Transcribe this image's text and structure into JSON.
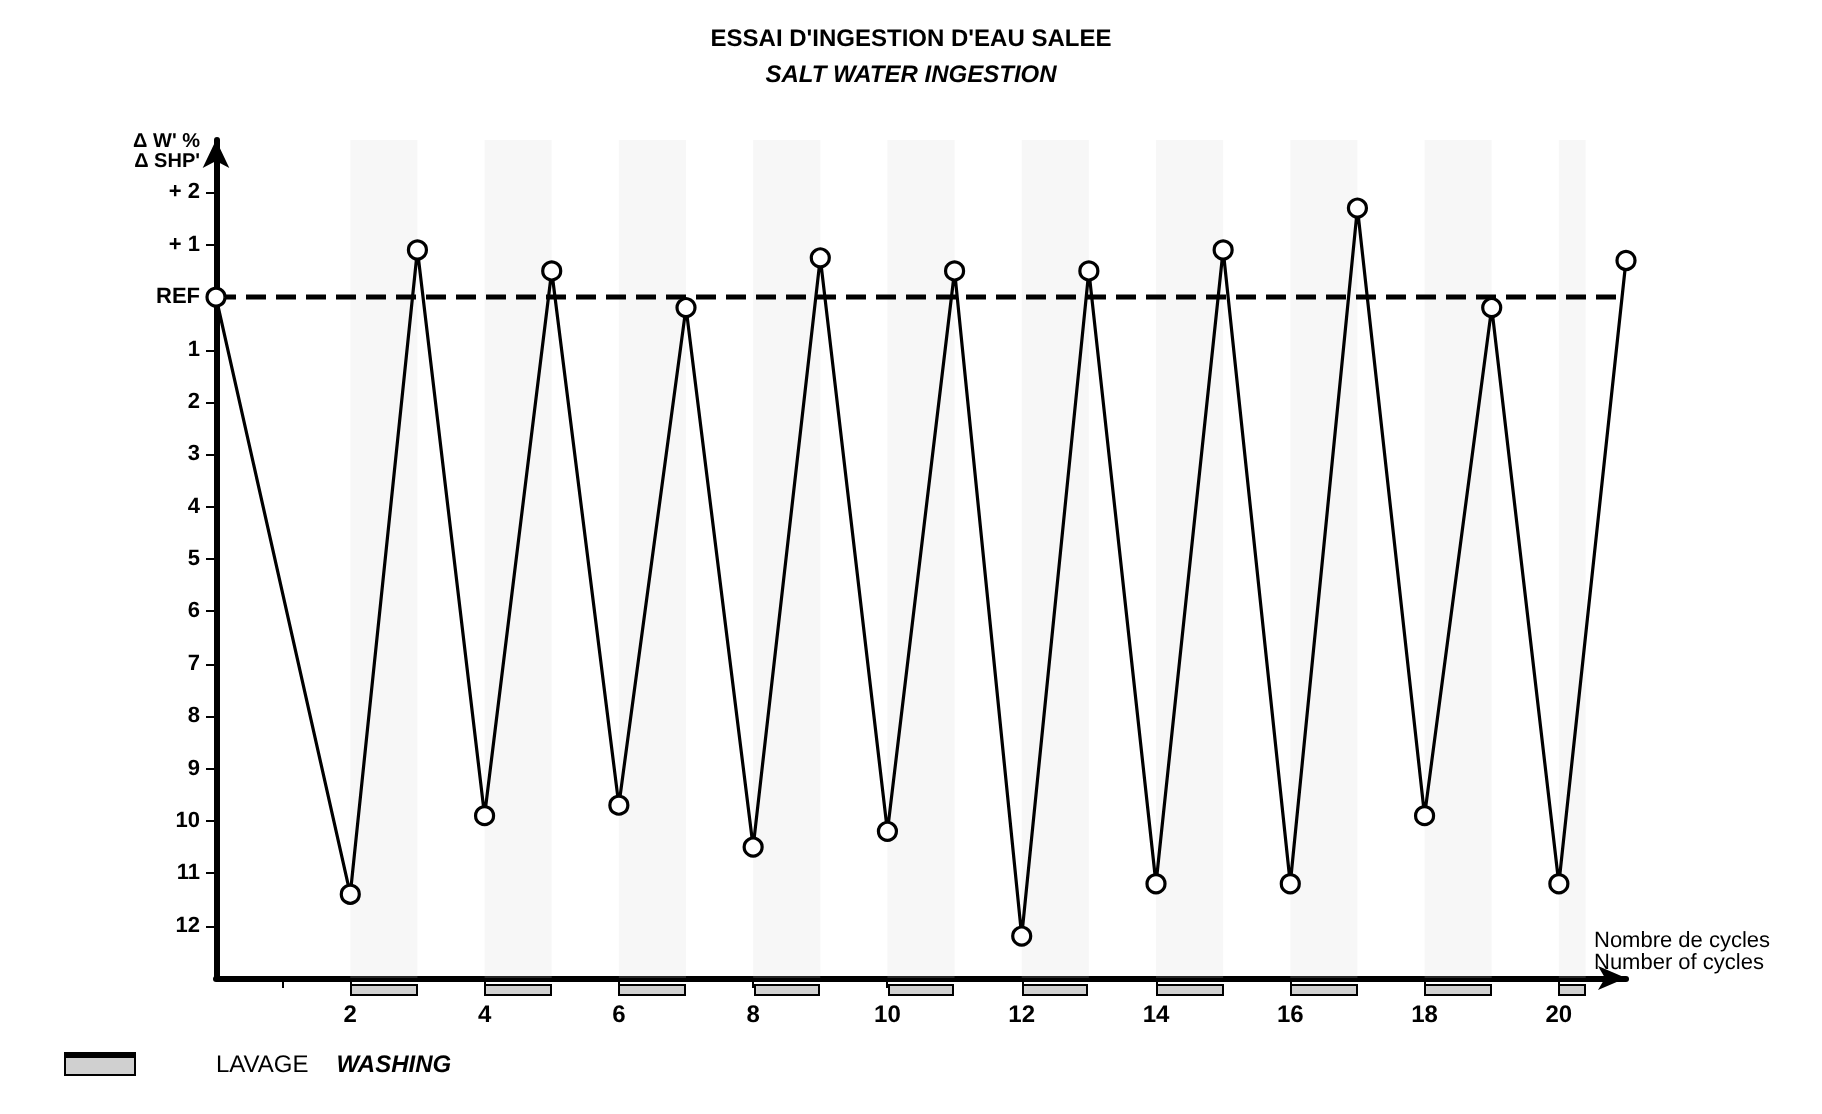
{
  "chart_data": {
    "type": "line",
    "title": "ESSAI D'INGESTION D'EAU SALEE",
    "subtitle": "SALT WATER INGESTION",
    "xlabel": "Nombre de cycles\nNumber of cycles",
    "ylabel": "Δ W' %\nΔ SHP'",
    "x": [
      0,
      2,
      3,
      4,
      5,
      6,
      7,
      8,
      9,
      10,
      11,
      12,
      13,
      14,
      15,
      16,
      17,
      18,
      19,
      20,
      21
    ],
    "series": [
      {
        "color": "#000000",
        "values": [
          0,
          -11.4,
          0.9,
          -9.9,
          0.5,
          -9.7,
          -0.2,
          -10.5,
          0.75,
          -10.2,
          0.5,
          -12.2,
          0.5,
          -11.2,
          0.9,
          -11.2,
          1.7,
          -9.9,
          -0.2,
          -11.2,
          0.7
        ]
      }
    ],
    "xlim": [
      0,
      21
    ],
    "xticks": [
      {
        "value": 1,
        "label": null
      },
      2,
      4,
      6,
      8,
      10,
      12,
      14,
      16,
      18,
      20
    ],
    "ylim": [
      -13,
      3
    ],
    "yticks": [
      {
        "value": 2,
        "label": "+ 2"
      },
      {
        "value": 1,
        "label": "+ 1"
      },
      {
        "value": 0,
        "label": "REF"
      },
      {
        "value": -1,
        "label": "1"
      },
      {
        "value": -2,
        "label": "2"
      },
      {
        "value": -3,
        "label": "3"
      },
      {
        "value": -4,
        "label": "4"
      },
      {
        "value": -5,
        "label": "5"
      },
      {
        "value": -6,
        "label": "6"
      },
      {
        "value": -7,
        "label": "7"
      },
      {
        "value": -8,
        "label": "8"
      },
      {
        "value": -9,
        "label": "9"
      },
      {
        "value": -10,
        "label": "10"
      },
      {
        "value": -11,
        "label": "11"
      },
      {
        "value": -12,
        "label": "12"
      }
    ],
    "ref_lines": [
      {
        "axis": "y",
        "value": 0,
        "line_style": "dashed",
        "color": "#000000"
      }
    ],
    "bands": [
      {
        "axis": "x",
        "from": 2,
        "to": 3,
        "color": "#d0d0d0"
      },
      {
        "axis": "x",
        "from": 4,
        "to": 5,
        "color": "#d0d0d0"
      },
      {
        "axis": "x",
        "from": 6,
        "to": 7,
        "color": "#d0d0d0"
      },
      {
        "axis": "x",
        "from": 8,
        "to": 9,
        "color": "#d0d0d0"
      },
      {
        "axis": "x",
        "from": 10,
        "to": 11,
        "color": "#d0d0d0"
      },
      {
        "axis": "x",
        "from": 12,
        "to": 13,
        "color": "#d0d0d0"
      },
      {
        "axis": "x",
        "from": 14,
        "to": 15,
        "color": "#d0d0d0"
      },
      {
        "axis": "x",
        "from": 16,
        "to": 17,
        "color": "#d0d0d0"
      },
      {
        "axis": "x",
        "from": 18,
        "to": 19,
        "color": "#d0d0d0"
      },
      {
        "axis": "x",
        "from": 20,
        "to": 20.4,
        "color": "#d0d0d0"
      }
    ],
    "annotations": [
      "LAVAGE",
      "WASHING"
    ],
    "grid": false,
    "marker": "circle",
    "line_style": "solid"
  }
}
